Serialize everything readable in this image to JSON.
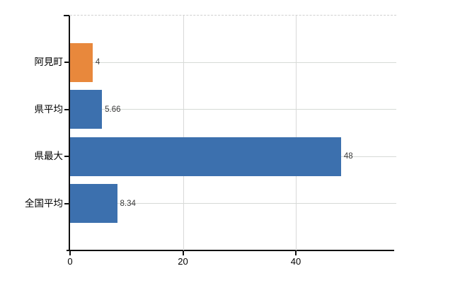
{
  "chart_data": {
    "type": "bar",
    "orientation": "horizontal",
    "title": "",
    "xlabel": "",
    "ylabel": "",
    "categories": [
      "阿見町",
      "県平均",
      "県最大",
      "全国平均"
    ],
    "values": [
      4,
      5.66,
      48,
      8.34
    ],
    "value_labels": [
      "4",
      "5.66",
      "48",
      "8.34"
    ],
    "bar_colors": [
      "#e8883c",
      "#3c70ae",
      "#3c70ae",
      "#3c70ae"
    ],
    "x_ticks": [
      0,
      20,
      40
    ],
    "x_tick_labels": [
      "0",
      "20",
      "40"
    ],
    "xlim": [
      0,
      57.8
    ],
    "grid": "on",
    "legend": "none",
    "colors": {
      "accent_bar": "#e8883c",
      "default_bar": "#3c70ae",
      "grid": "#d9d9d9",
      "axis": "#111111",
      "value_label": "#3a3a3a",
      "category_label": "#000000",
      "background": "#ffffff"
    }
  }
}
